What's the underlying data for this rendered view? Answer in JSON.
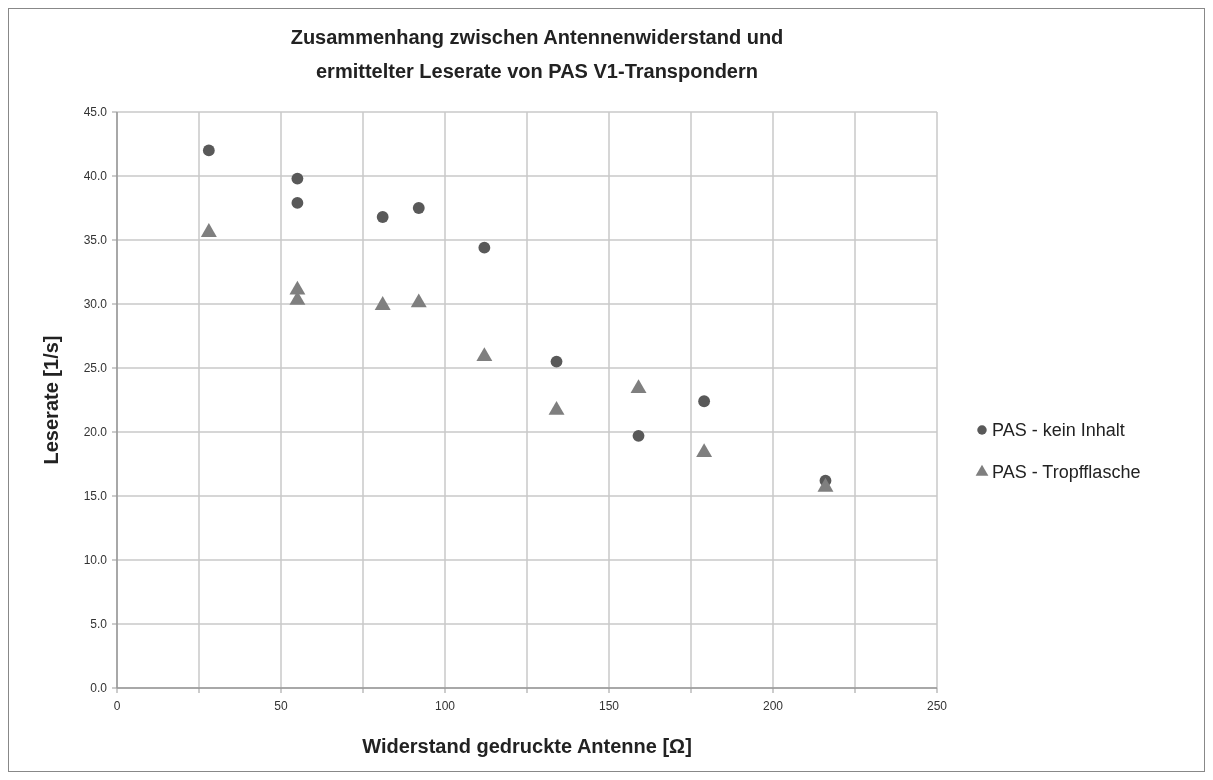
{
  "chart_data": {
    "type": "scatter",
    "title": "Zusammenhang zwischen Antennenwiderstand und\nermittelter Leserate von PAS V1-Transpondern",
    "xlabel": "Widerstand gedruckte Antenne [Ω]",
    "ylabel": "Leserate [1/s]",
    "xlim": [
      0,
      250
    ],
    "ylim": [
      0,
      45
    ],
    "xticks": [
      0,
      {
        "value": 25,
        "label": null
      },
      50,
      {
        "value": 75,
        "label": null
      },
      100,
      {
        "value": 125,
        "label": null
      },
      150,
      {
        "value": 175,
        "label": null
      },
      200,
      {
        "value": 225,
        "label": null
      },
      250
    ],
    "yticks": [
      {
        "value": 0,
        "label": "0.0"
      },
      {
        "value": 5,
        "label": "5.0"
      },
      {
        "value": 10,
        "label": "10.0"
      },
      {
        "value": 15,
        "label": "15.0"
      },
      {
        "value": 20,
        "label": "20.0"
      },
      {
        "value": 25,
        "label": "25.0"
      },
      {
        "value": 30,
        "label": "30.0"
      },
      {
        "value": 35,
        "label": "35.0"
      },
      {
        "value": 40,
        "label": "40.0"
      },
      {
        "value": 45,
        "label": "45.0"
      }
    ],
    "grid": true,
    "legend": "right",
    "series": [
      {
        "name": "PAS - kein Inhalt",
        "color": "#595959",
        "marker": "circle",
        "x": [
          28,
          55,
          55,
          81,
          92,
          112,
          134,
          159,
          179,
          216
        ],
        "values": [
          42.0,
          39.8,
          37.9,
          36.8,
          37.5,
          34.4,
          25.5,
          19.7,
          22.4,
          16.2
        ]
      },
      {
        "name": "PAS - Tropfflasche",
        "color": "#7f7f7f",
        "marker": "triangle",
        "x": [
          28,
          55,
          55,
          81,
          92,
          112,
          134,
          159,
          179,
          216
        ],
        "values": [
          35.6,
          31.1,
          30.3,
          29.9,
          30.1,
          25.9,
          21.7,
          23.4,
          18.4,
          15.7
        ]
      }
    ]
  }
}
